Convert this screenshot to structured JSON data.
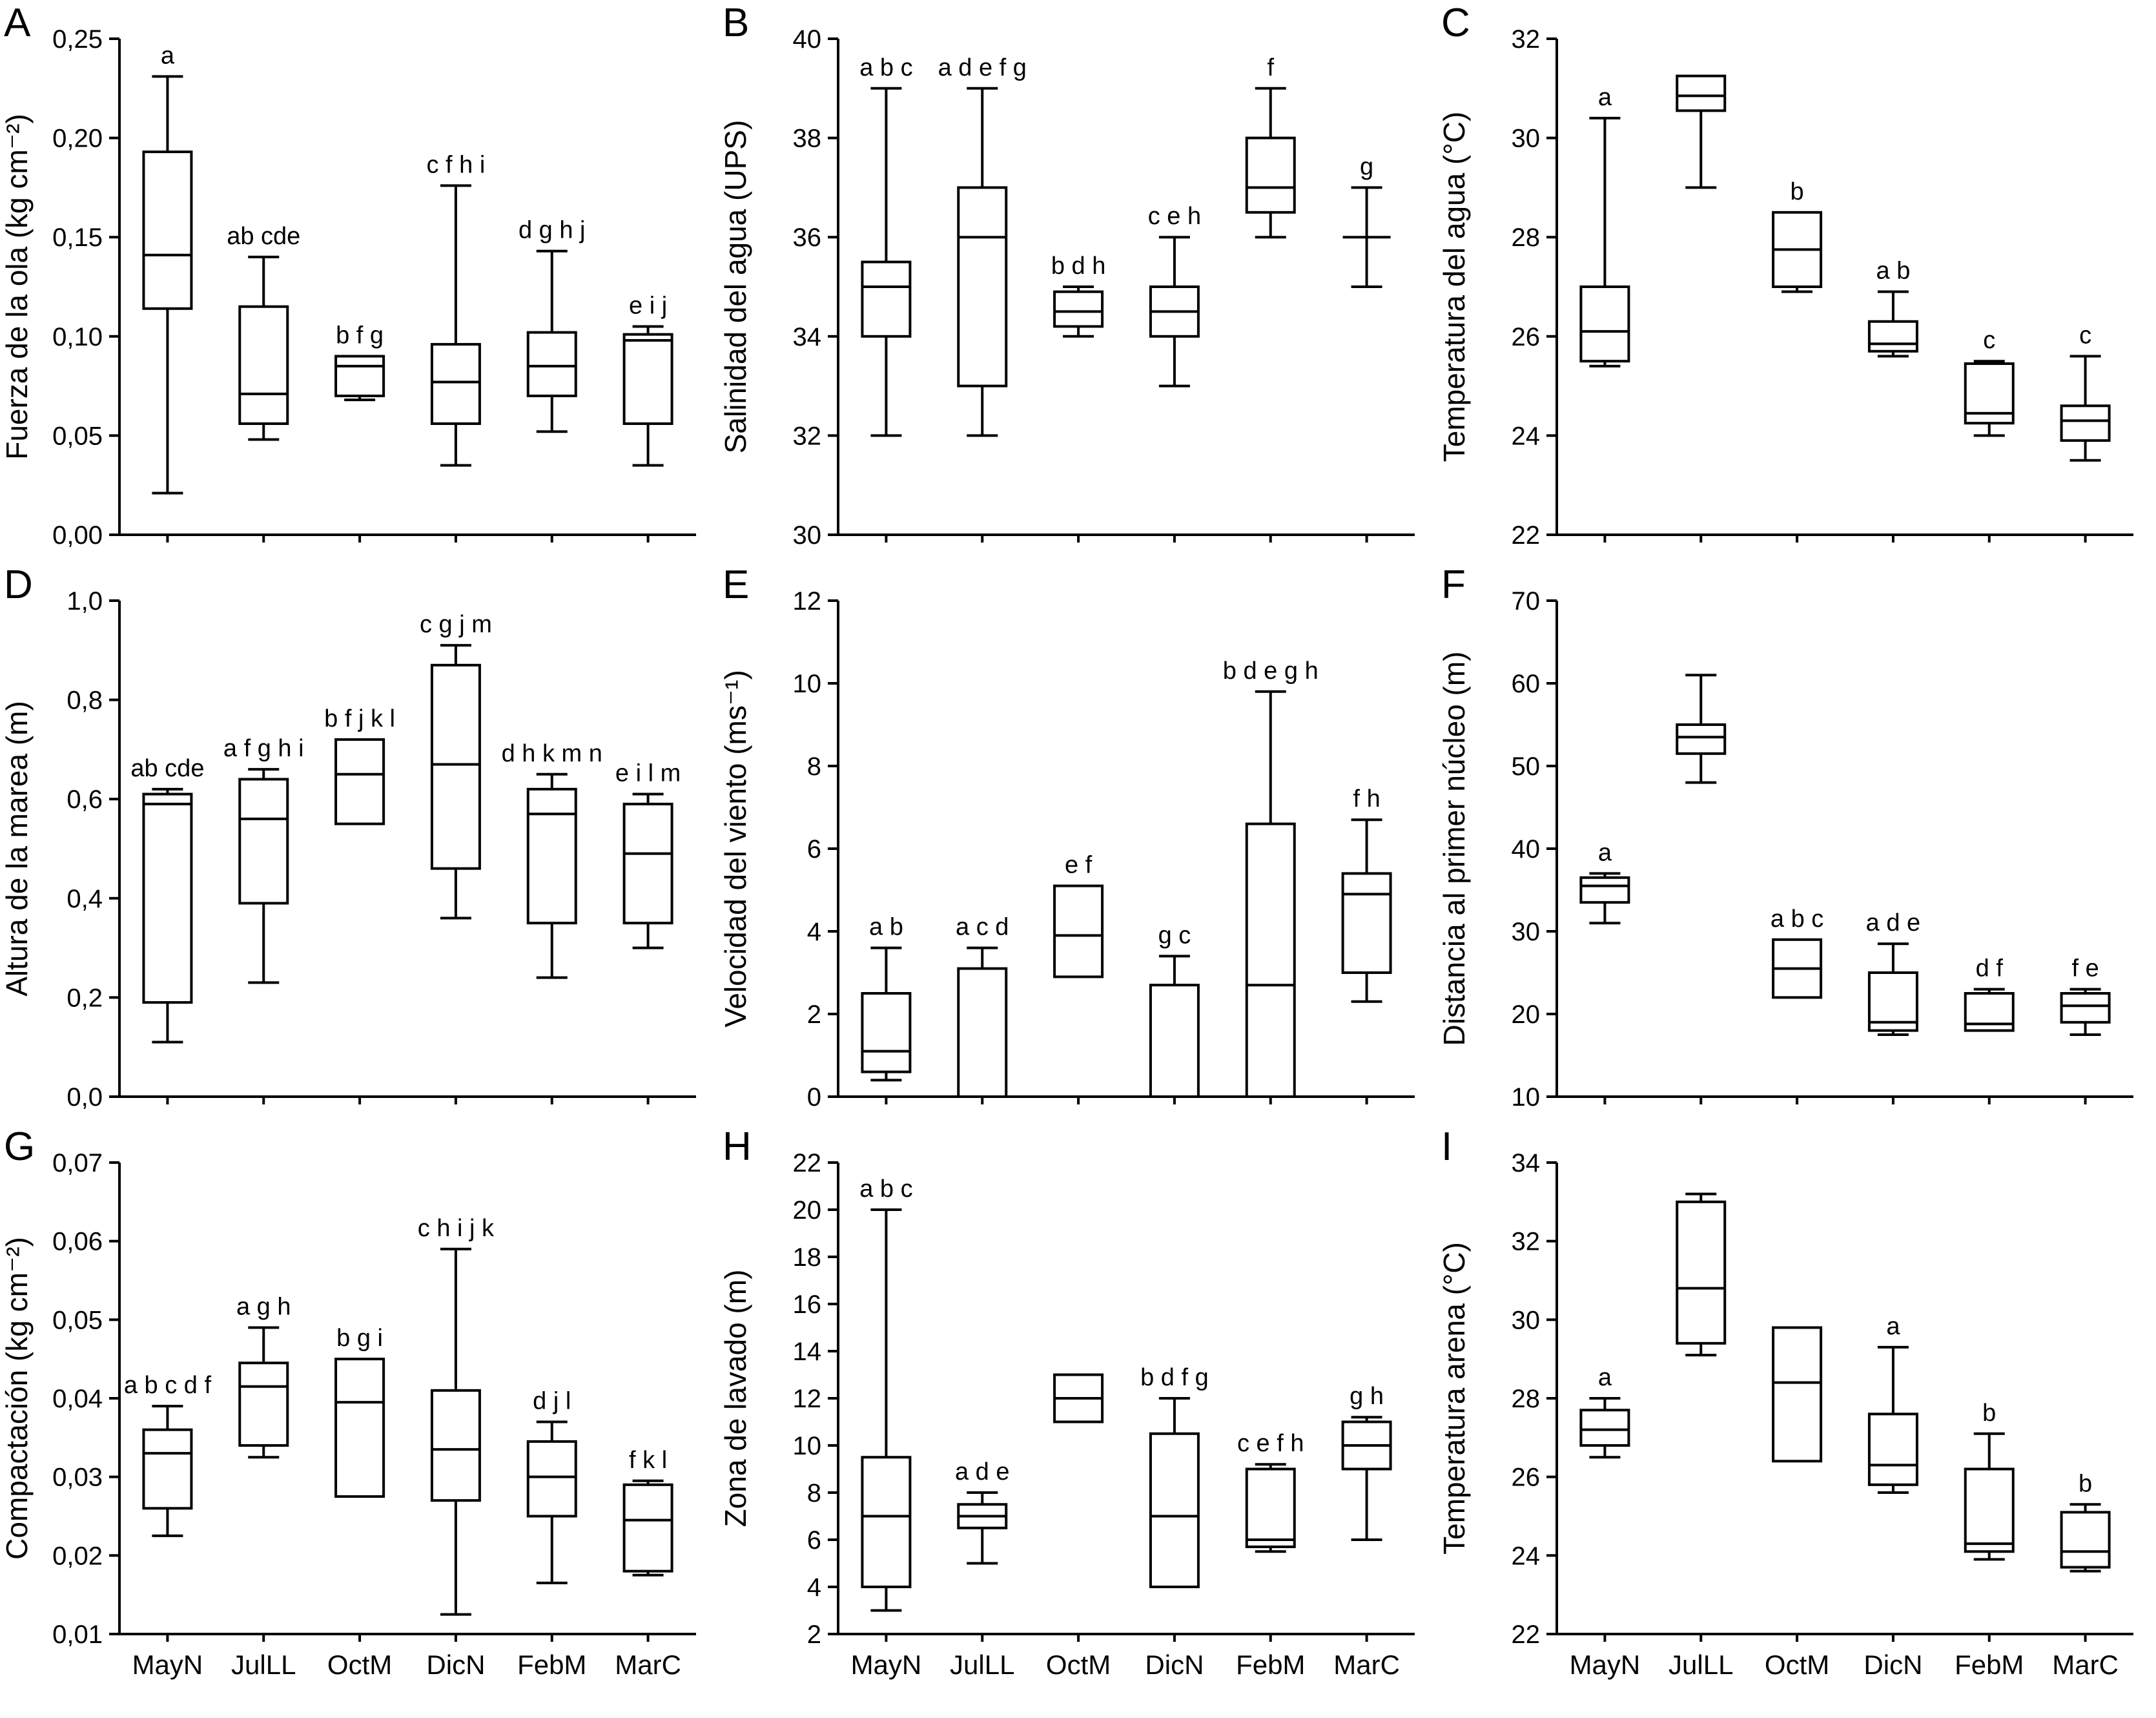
{
  "page": {
    "background": "#ffffff",
    "stroke_color": "#000000"
  },
  "categories": [
    "MayN",
    "JulLL",
    "OctM",
    "DicN",
    "FebM",
    "MarC"
  ],
  "chart_data": [
    {
      "panel_label": "A",
      "type": "box",
      "ylabel": "Fuerza de la ola (kg cm⁻²)",
      "ylim": [
        0,
        0.25
      ],
      "ytick_values": [
        0,
        0.05,
        0.1,
        0.15,
        0.2,
        0.25
      ],
      "ytick_labels": [
        "0,00",
        "0,05",
        "0,10",
        "0,15",
        "0,20",
        "0,25"
      ],
      "show_xlabels": false,
      "boxes": [
        {
          "letters": "a",
          "low": 0.021,
          "q1": 0.114,
          "median": 0.141,
          "q3": 0.193,
          "high": 0.231
        },
        {
          "letters": "ab cde",
          "low": 0.048,
          "q1": 0.056,
          "median": 0.071,
          "q3": 0.115,
          "high": 0.14
        },
        {
          "letters": "b f g",
          "low": 0.068,
          "q1": 0.07,
          "median": 0.085,
          "q3": 0.09,
          "high": 0.09
        },
        {
          "letters": "c f h i",
          "low": 0.035,
          "q1": 0.056,
          "median": 0.077,
          "q3": 0.096,
          "high": 0.176
        },
        {
          "letters": "d g h j",
          "low": 0.052,
          "q1": 0.07,
          "median": 0.085,
          "q3": 0.102,
          "high": 0.143
        },
        {
          "letters": "e i j",
          "low": 0.035,
          "q1": 0.056,
          "median": 0.098,
          "q3": 0.101,
          "high": 0.105
        }
      ]
    },
    {
      "panel_label": "B",
      "type": "box",
      "ylabel": "Salinidad del agua (UPS)",
      "ylim": [
        30,
        40
      ],
      "ytick_values": [
        30,
        32,
        34,
        36,
        38,
        40
      ],
      "ytick_labels": [
        "30",
        "32",
        "34",
        "36",
        "38",
        "40"
      ],
      "show_xlabels": false,
      "boxes": [
        {
          "letters": "a b c",
          "low": 32,
          "q1": 34,
          "median": 35,
          "q3": 35.5,
          "high": 39
        },
        {
          "letters": "a d e f g",
          "low": 32,
          "q1": 33,
          "median": 36,
          "q3": 37,
          "high": 39
        },
        {
          "letters": "b d h",
          "low": 34,
          "q1": 34.2,
          "median": 34.5,
          "q3": 34.9,
          "high": 35
        },
        {
          "letters": "c e h",
          "low": 33,
          "q1": 34,
          "median": 34.5,
          "q3": 35,
          "high": 36
        },
        {
          "letters": "f",
          "low": 36,
          "q1": 36.5,
          "median": 37,
          "q3": 38,
          "high": 39
        },
        {
          "letters": "g",
          "low": 35,
          "q1": 36,
          "median": 36,
          "q3": 36,
          "high": 37
        }
      ]
    },
    {
      "panel_label": "C",
      "type": "box",
      "ylabel": "Temperatura del agua (°C)",
      "ylim": [
        22,
        32
      ],
      "ytick_values": [
        22,
        24,
        26,
        28,
        30,
        32
      ],
      "ytick_labels": [
        "22",
        "24",
        "26",
        "28",
        "30",
        "32"
      ],
      "show_xlabels": false,
      "boxes": [
        {
          "letters": "a",
          "low": 25.4,
          "q1": 25.5,
          "median": 26.1,
          "q3": 27.0,
          "high": 30.4
        },
        {
          "letters": "",
          "low": 29.0,
          "q1": 30.55,
          "median": 30.85,
          "q3": 31.25,
          "high": 31.25
        },
        {
          "letters": "b",
          "low": 26.9,
          "q1": 27.0,
          "median": 27.75,
          "q3": 28.5,
          "high": 28.5
        },
        {
          "letters": "a b",
          "low": 25.6,
          "q1": 25.7,
          "median": 25.85,
          "q3": 26.3,
          "high": 26.9
        },
        {
          "letters": "c",
          "low": 24.0,
          "q1": 24.25,
          "median": 24.45,
          "q3": 25.45,
          "high": 25.5
        },
        {
          "letters": "c",
          "low": 23.5,
          "q1": 23.9,
          "median": 24.3,
          "q3": 24.6,
          "high": 25.6
        }
      ]
    },
    {
      "panel_label": "D",
      "type": "box",
      "ylabel": "Altura de la marea (m)",
      "ylim": [
        0,
        1
      ],
      "ytick_values": [
        0,
        0.2,
        0.4,
        0.6,
        0.8,
        1.0
      ],
      "ytick_labels": [
        "0,0",
        "0,2",
        "0,4",
        "0,6",
        "0,8",
        "1,0"
      ],
      "show_xlabels": false,
      "boxes": [
        {
          "letters": "ab cde",
          "low": 0.11,
          "q1": 0.19,
          "median": 0.59,
          "q3": 0.61,
          "high": 0.62
        },
        {
          "letters": "a f g h i",
          "low": 0.23,
          "q1": 0.39,
          "median": 0.56,
          "q3": 0.64,
          "high": 0.66
        },
        {
          "letters": "b f j k l",
          "low": 0.55,
          "q1": 0.55,
          "median": 0.65,
          "q3": 0.72,
          "high": 0.72
        },
        {
          "letters": "c g j m",
          "low": 0.36,
          "q1": 0.46,
          "median": 0.67,
          "q3": 0.87,
          "high": 0.91
        },
        {
          "letters": "d h k m n",
          "low": 0.24,
          "q1": 0.35,
          "median": 0.57,
          "q3": 0.62,
          "high": 0.65
        },
        {
          "letters": "e i l m",
          "low": 0.3,
          "q1": 0.35,
          "median": 0.49,
          "q3": 0.59,
          "high": 0.61
        }
      ]
    },
    {
      "panel_label": "E",
      "type": "box",
      "ylabel": "Velocidad del viento (ms⁻¹)",
      "ylim": [
        0,
        12
      ],
      "ytick_values": [
        0,
        2,
        4,
        6,
        8,
        10,
        12
      ],
      "ytick_labels": [
        "0",
        "2",
        "4",
        "6",
        "8",
        "10",
        "12"
      ],
      "show_xlabels": false,
      "boxes": [
        {
          "letters": "a b",
          "low": 0.4,
          "q1": 0.6,
          "median": 1.1,
          "q3": 2.5,
          "high": 3.6
        },
        {
          "letters": "a c d",
          "low": 0,
          "q1": 0,
          "median": 0,
          "q3": 3.1,
          "high": 3.6
        },
        {
          "letters": "e f",
          "low": 2.9,
          "q1": 2.9,
          "median": 3.9,
          "q3": 5.1,
          "high": 5.1
        },
        {
          "letters": "g c",
          "low": 0,
          "q1": 0,
          "median": 0,
          "q3": 2.7,
          "high": 3.4
        },
        {
          "letters": "b d e g h",
          "low": 0,
          "q1": 0,
          "median": 2.7,
          "q3": 6.6,
          "high": 9.8
        },
        {
          "letters": "f h",
          "low": 2.3,
          "q1": 3.0,
          "median": 4.9,
          "q3": 5.4,
          "high": 6.7
        }
      ]
    },
    {
      "panel_label": "F",
      "type": "box",
      "ylabel": "Distancia al primer núcleo (m)",
      "ylim": [
        10,
        70
      ],
      "ytick_values": [
        10,
        20,
        30,
        40,
        50,
        60,
        70
      ],
      "ytick_labels": [
        "10",
        "20",
        "30",
        "40",
        "50",
        "60",
        "70"
      ],
      "show_xlabels": false,
      "boxes": [
        {
          "letters": "a",
          "low": 31,
          "q1": 33.5,
          "median": 35.5,
          "q3": 36.5,
          "high": 37
        },
        {
          "letters": "",
          "low": 48,
          "q1": 51.5,
          "median": 53.5,
          "q3": 55,
          "high": 61
        },
        {
          "letters": "a b c",
          "low": 22,
          "q1": 22,
          "median": 25.5,
          "q3": 29,
          "high": 29
        },
        {
          "letters": "a d e",
          "low": 17.5,
          "q1": 18,
          "median": 19,
          "q3": 25,
          "high": 28.5
        },
        {
          "letters": "d f",
          "low": 18,
          "q1": 18,
          "median": 18.8,
          "q3": 22.5,
          "high": 23
        },
        {
          "letters": "f e",
          "low": 17.5,
          "q1": 19,
          "median": 21,
          "q3": 22.5,
          "high": 23
        }
      ]
    },
    {
      "panel_label": "G",
      "type": "box",
      "ylabel": "Compactación (kg cm⁻²)",
      "ylim": [
        0.01,
        0.07
      ],
      "ytick_values": [
        0.01,
        0.02,
        0.03,
        0.04,
        0.05,
        0.06,
        0.07
      ],
      "ytick_labels": [
        "0,01",
        "0,02",
        "0,03",
        "0,04",
        "0,05",
        "0,06",
        "0,07"
      ],
      "show_xlabels": true,
      "boxes": [
        {
          "letters": "a b c d f",
          "low": 0.0225,
          "q1": 0.026,
          "median": 0.033,
          "q3": 0.036,
          "high": 0.039
        },
        {
          "letters": "a g h",
          "low": 0.0325,
          "q1": 0.034,
          "median": 0.0415,
          "q3": 0.0445,
          "high": 0.049
        },
        {
          "letters": "b g i",
          "low": 0.0275,
          "q1": 0.0275,
          "median": 0.0395,
          "q3": 0.045,
          "high": 0.045
        },
        {
          "letters": "c h i j k",
          "low": 0.0125,
          "q1": 0.027,
          "median": 0.0335,
          "q3": 0.041,
          "high": 0.059
        },
        {
          "letters": "d j l",
          "low": 0.0165,
          "q1": 0.025,
          "median": 0.03,
          "q3": 0.0345,
          "high": 0.037
        },
        {
          "letters": "f k l",
          "low": 0.0175,
          "q1": 0.018,
          "median": 0.0245,
          "q3": 0.029,
          "high": 0.0295
        }
      ]
    },
    {
      "panel_label": "H",
      "type": "box",
      "ylabel": "Zona de lavado (m)",
      "ylim": [
        2,
        22
      ],
      "ytick_values": [
        2,
        4,
        6,
        8,
        10,
        12,
        14,
        16,
        18,
        20,
        22
      ],
      "ytick_labels": [
        "2",
        "4",
        "6",
        "8",
        "10",
        "12",
        "14",
        "16",
        "18",
        "20",
        "22"
      ],
      "show_xlabels": true,
      "boxes": [
        {
          "letters": "a b c",
          "low": 3,
          "q1": 4,
          "median": 7,
          "q3": 9.5,
          "high": 20
        },
        {
          "letters": "a d e",
          "low": 5,
          "q1": 6.5,
          "median": 7,
          "q3": 7.5,
          "high": 8
        },
        {
          "letters": "",
          "low": 11,
          "q1": 11,
          "median": 12,
          "q3": 13,
          "high": 13
        },
        {
          "letters": "b d f g",
          "low": 4,
          "q1": 4,
          "median": 7,
          "q3": 10.5,
          "high": 12
        },
        {
          "letters": "c e f h",
          "low": 5.5,
          "q1": 5.7,
          "median": 6,
          "q3": 9,
          "high": 9.2
        },
        {
          "letters": "g h",
          "low": 6,
          "q1": 9,
          "median": 10,
          "q3": 11,
          "high": 11.2
        }
      ]
    },
    {
      "panel_label": "I",
      "type": "box",
      "ylabel": "Temperatura arena (°C)",
      "ylim": [
        22,
        34
      ],
      "ytick_values": [
        22,
        24,
        26,
        28,
        30,
        32,
        34
      ],
      "ytick_labels": [
        "22",
        "24",
        "26",
        "28",
        "30",
        "32",
        "34"
      ],
      "show_xlabels": true,
      "boxes": [
        {
          "letters": "a",
          "low": 26.5,
          "q1": 26.8,
          "median": 27.2,
          "q3": 27.7,
          "high": 28
        },
        {
          "letters": "",
          "low": 29.1,
          "q1": 29.4,
          "median": 30.8,
          "q3": 33.0,
          "high": 33.2
        },
        {
          "letters": "",
          "low": 26.4,
          "q1": 26.4,
          "median": 28.4,
          "q3": 29.8,
          "high": 29.8
        },
        {
          "letters": "a",
          "low": 25.6,
          "q1": 25.8,
          "median": 26.3,
          "q3": 27.6,
          "high": 29.3
        },
        {
          "letters": "b",
          "low": 23.9,
          "q1": 24.1,
          "median": 24.3,
          "q3": 26.2,
          "high": 27.1
        },
        {
          "letters": "b",
          "low": 23.6,
          "q1": 23.7,
          "median": 24.1,
          "q3": 25.1,
          "high": 25.3
        }
      ]
    }
  ]
}
